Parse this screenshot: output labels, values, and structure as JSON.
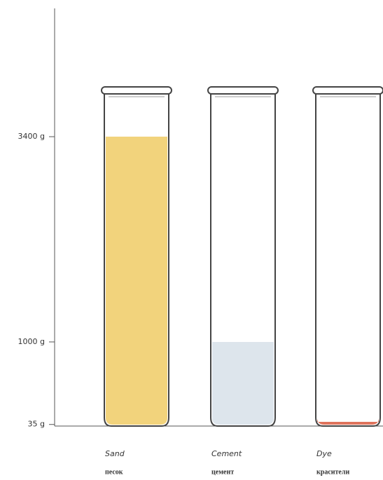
{
  "chart_data": {
    "type": "bar",
    "categories": [
      "Sand",
      "Cement",
      "Dye"
    ],
    "categories_ru": [
      "песок",
      "цемент",
      "красители"
    ],
    "values": [
      3400,
      1000,
      35
    ],
    "colors": [
      "#f2d37c",
      "#dde5ec",
      "#df735c"
    ],
    "ylim": [
      0,
      4900
    ],
    "yticks": [
      {
        "value": 35,
        "label": "35 g"
      },
      {
        "value": 1000,
        "label": "1000 g"
      },
      {
        "value": 3400,
        "label": "3400 g"
      }
    ]
  }
}
